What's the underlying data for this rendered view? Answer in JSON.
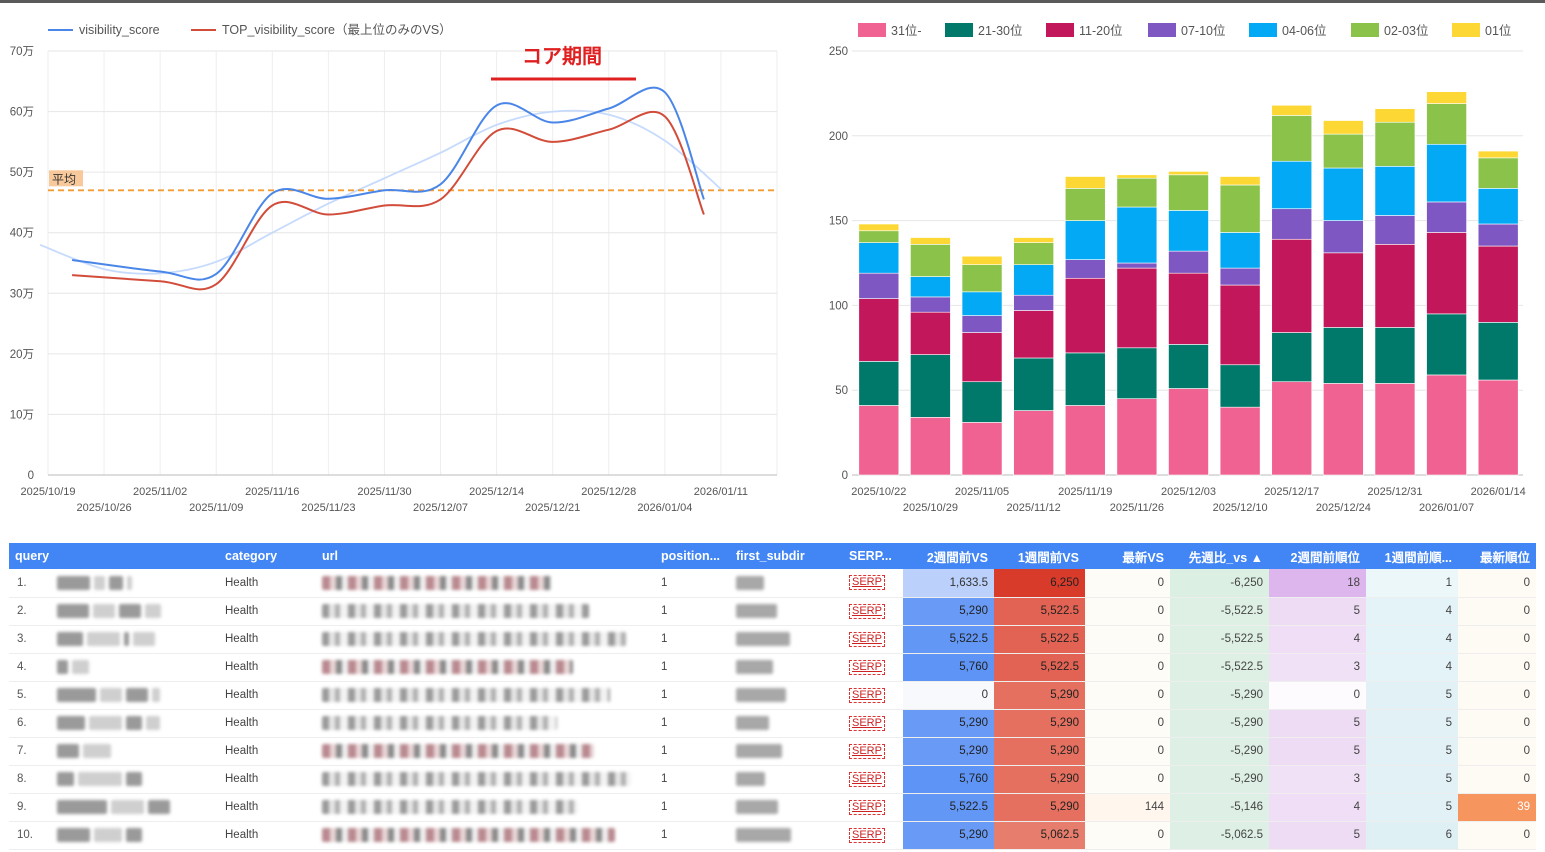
{
  "line_chart": {
    "legend": [
      {
        "name": "visibility_score",
        "color": "#4a86e8"
      },
      {
        "name": "TOP_visibility_score（最上位のみのVS）",
        "color": "#d24c3a"
      }
    ],
    "annotation": "コア期間",
    "average_label": "平均",
    "y_ticks": [
      "0",
      "10万",
      "20万",
      "30万",
      "40万",
      "50万",
      "60万",
      "70万"
    ],
    "x_ticks_top": [
      "2025/10/19",
      "2025/11/02",
      "2025/11/16",
      "2025/11/30",
      "2025/12/14",
      "2025/12/28",
      "2026/01/11"
    ],
    "x_ticks_bottom": [
      "2025/10/26",
      "2025/11/09",
      "2025/11/23",
      "2025/12/07",
      "2025/12/21",
      "2026/01/04"
    ]
  },
  "bar_chart": {
    "legend": [
      {
        "name": "31位-",
        "color": "#f06292"
      },
      {
        "name": "21-30位",
        "color": "#00796b"
      },
      {
        "name": "11-20位",
        "color": "#c2185b"
      },
      {
        "name": "07-10位",
        "color": "#7e57c2"
      },
      {
        "name": "04-06位",
        "color": "#03a9f4"
      },
      {
        "name": "02-03位",
        "color": "#8bc34a"
      },
      {
        "name": "01位",
        "color": "#fdd835"
      }
    ],
    "y_ticks": [
      "0",
      "50",
      "100",
      "150",
      "200",
      "250"
    ],
    "x_ticks_top": [
      "2025/10/22",
      "2025/11/05",
      "2025/11/19",
      "2025/12/03",
      "2025/12/17",
      "2025/12/31",
      "2026/01/14"
    ],
    "x_ticks_bottom": [
      "2025/10/29",
      "2025/11/12",
      "2025/11/26",
      "2025/12/10",
      "2025/12/24",
      "2026/01/07"
    ]
  },
  "chart_data": [
    {
      "type": "line",
      "x": [
        "2025/10/19",
        "2025/10/26",
        "2025/11/02",
        "2025/11/09",
        "2025/11/16",
        "2025/11/23",
        "2025/11/30",
        "2025/12/07",
        "2025/12/14",
        "2025/12/21",
        "2025/12/28",
        "2026/01/04",
        "2026/01/11"
      ],
      "series": [
        {
          "name": "visibility_score",
          "values": [
            null,
            355000,
            336000,
            332000,
            465000,
            456000,
            470000,
            480000,
            610000,
            582000,
            605000,
            632000,
            455000
          ]
        },
        {
          "name": "TOP_visibility_score（最上位のみのVS）",
          "values": [
            null,
            330000,
            320000,
            315000,
            445000,
            430000,
            445000,
            455000,
            568000,
            550000,
            570000,
            592000,
            430000
          ]
        }
      ],
      "average": 470000,
      "trend": [
        380000,
        340000,
        333000,
        352000,
        400000,
        448000,
        490000,
        532000,
        578000,
        600000,
        595000,
        552000,
        472000
      ],
      "ylim": [
        0,
        700000
      ],
      "grid": true,
      "legend_position": "top-left"
    },
    {
      "type": "bar",
      "stacked": true,
      "categories": [
        "2025/10/22",
        "2025/10/29",
        "2025/11/05",
        "2025/11/12",
        "2025/11/19",
        "2025/11/26",
        "2025/12/03",
        "2025/12/10",
        "2025/12/17",
        "2025/12/24",
        "2025/12/31",
        "2026/01/07",
        "2026/01/14"
      ],
      "series": [
        {
          "name": "31位-",
          "values": [
            41,
            34,
            31,
            38,
            41,
            45,
            51,
            40,
            55,
            54,
            54,
            59,
            56
          ]
        },
        {
          "name": "21-30位",
          "values": [
            26,
            37,
            24,
            31,
            31,
            30,
            26,
            25,
            29,
            33,
            33,
            36,
            34
          ]
        },
        {
          "name": "11-20位",
          "values": [
            37,
            25,
            29,
            28,
            44,
            47,
            42,
            47,
            55,
            44,
            49,
            48,
            45
          ]
        },
        {
          "name": "07-10位",
          "values": [
            15,
            9,
            10,
            9,
            11,
            3,
            13,
            10,
            18,
            19,
            17,
            18,
            13
          ]
        },
        {
          "name": "04-06位",
          "values": [
            18,
            12,
            14,
            18,
            23,
            33,
            24,
            21,
            28,
            31,
            29,
            34,
            21
          ]
        },
        {
          "name": "02-03位",
          "values": [
            7,
            19,
            16,
            13,
            19,
            17,
            21,
            28,
            27,
            20,
            26,
            24,
            18
          ]
        },
        {
          "name": "01位",
          "values": [
            4,
            4,
            5,
            3,
            7,
            2,
            2,
            5,
            6,
            8,
            8,
            7,
            4
          ]
        }
      ],
      "ylim": [
        0,
        250
      ],
      "grid": true,
      "legend_position": "top"
    }
  ],
  "table": {
    "columns": [
      "query",
      "category",
      "url",
      "position...",
      "first_subdir",
      "SERP...",
      "2週間前VS",
      "1週間前VS",
      "最新VS",
      "先週比_vs ▲",
      "2週間前順位",
      "1週間前順...",
      "最新順位"
    ],
    "rows": [
      {
        "idx": "1.",
        "category": "Health",
        "position": "1",
        "serp": "SERP",
        "vs2": "1,633.5",
        "vs1": "6,250",
        "vsl": "0",
        "diff": "-6,250",
        "r2": "18",
        "r1": "1",
        "rl": "0"
      },
      {
        "idx": "2.",
        "category": "Health",
        "position": "1",
        "serp": "SERP",
        "vs2": "5,290",
        "vs1": "5,522.5",
        "vsl": "0",
        "diff": "-5,522.5",
        "r2": "5",
        "r1": "4",
        "rl": "0"
      },
      {
        "idx": "3.",
        "category": "Health",
        "position": "1",
        "serp": "SERP",
        "vs2": "5,522.5",
        "vs1": "5,522.5",
        "vsl": "0",
        "diff": "-5,522.5",
        "r2": "4",
        "r1": "4",
        "rl": "0"
      },
      {
        "idx": "4.",
        "category": "Health",
        "position": "1",
        "serp": "SERP",
        "vs2": "5,760",
        "vs1": "5,522.5",
        "vsl": "0",
        "diff": "-5,522.5",
        "r2": "3",
        "r1": "4",
        "rl": "0"
      },
      {
        "idx": "5.",
        "category": "Health",
        "position": "1",
        "serp": "SERP",
        "vs2": "0",
        "vs1": "5,290",
        "vsl": "0",
        "diff": "-5,290",
        "r2": "0",
        "r1": "5",
        "rl": "0"
      },
      {
        "idx": "6.",
        "category": "Health",
        "position": "1",
        "serp": "SERP",
        "vs2": "5,290",
        "vs1": "5,290",
        "vsl": "0",
        "diff": "-5,290",
        "r2": "5",
        "r1": "5",
        "rl": "0"
      },
      {
        "idx": "7.",
        "category": "Health",
        "position": "1",
        "serp": "SERP",
        "vs2": "5,290",
        "vs1": "5,290",
        "vsl": "0",
        "diff": "-5,290",
        "r2": "5",
        "r1": "5",
        "rl": "0"
      },
      {
        "idx": "8.",
        "category": "Health",
        "position": "1",
        "serp": "SERP",
        "vs2": "5,760",
        "vs1": "5,290",
        "vsl": "0",
        "diff": "-5,290",
        "r2": "3",
        "r1": "5",
        "rl": "0"
      },
      {
        "idx": "9.",
        "category": "Health",
        "position": "1",
        "serp": "SERP",
        "vs2": "5,522.5",
        "vs1": "5,290",
        "vsl": "144",
        "diff": "-5,146",
        "r2": "4",
        "r1": "5",
        "rl": "39"
      },
      {
        "idx": "10.",
        "category": "Health",
        "position": "1",
        "serp": "SERP",
        "vs2": "5,290",
        "vs1": "5,062.5",
        "vsl": "0",
        "diff": "-5,062.5",
        "r2": "5",
        "r1": "6",
        "rl": "0"
      }
    ]
  }
}
